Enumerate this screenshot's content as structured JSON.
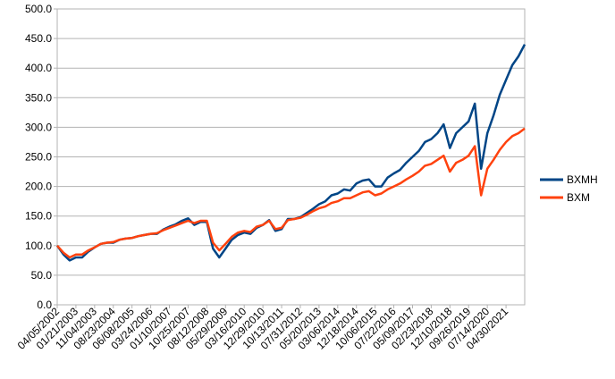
{
  "chart_data": {
    "type": "line",
    "categories": [
      "04/05/2002",
      null,
      null,
      "01/21/2003",
      null,
      null,
      "11/04/2003",
      null,
      null,
      "08/23/2004",
      null,
      null,
      "06/08/2005",
      null,
      null,
      "03/24/2006",
      null,
      null,
      "01/10/2007",
      null,
      null,
      "10/25/2007",
      null,
      null,
      "08/12/2008",
      null,
      null,
      "05/29/2009",
      null,
      null,
      "03/16/2010",
      null,
      null,
      "12/29/2010",
      null,
      null,
      "10/13/2011",
      null,
      null,
      "07/31/2012",
      null,
      null,
      "05/20/2013",
      null,
      null,
      "03/06/2014",
      null,
      null,
      "12/18/2014",
      null,
      null,
      "10/06/2015",
      null,
      null,
      "07/22/2016",
      null,
      null,
      "05/09/2017",
      null,
      null,
      "02/23/2018",
      null,
      null,
      "12/10/2018",
      null,
      null,
      "09/26/2019",
      null,
      null,
      "07/14/2020",
      null,
      null,
      "04/30/2021",
      null,
      null,
      null
    ],
    "series": [
      {
        "name": "BXMH",
        "color": "#004586",
        "values": [
          100,
          85,
          75,
          80,
          80,
          90,
          97,
          103,
          105,
          105,
          110,
          112,
          113,
          116,
          118,
          120,
          120,
          127,
          132,
          136,
          142,
          146,
          135,
          140,
          140,
          95,
          80,
          95,
          110,
          118,
          122,
          120,
          130,
          135,
          143,
          125,
          128,
          145,
          145,
          148,
          155,
          162,
          170,
          175,
          185,
          188,
          195,
          193,
          205,
          210,
          212,
          200,
          200,
          215,
          222,
          228,
          240,
          250,
          260,
          275,
          280,
          290,
          305,
          265,
          290,
          300,
          310,
          340,
          230,
          290,
          320,
          355,
          380,
          405,
          420,
          440
        ]
      },
      {
        "name": "BXM",
        "color": "#ff420e",
        "values": [
          100,
          88,
          80,
          85,
          85,
          92,
          97,
          103,
          105,
          106,
          110,
          112,
          113,
          116,
          118,
          120,
          121,
          126,
          130,
          134,
          138,
          142,
          138,
          142,
          142,
          105,
          92,
          103,
          115,
          122,
          125,
          123,
          132,
          135,
          142,
          128,
          130,
          143,
          145,
          147,
          152,
          158,
          163,
          166,
          172,
          175,
          180,
          180,
          185,
          190,
          192,
          185,
          188,
          195,
          200,
          205,
          212,
          218,
          225,
          235,
          238,
          245,
          252,
          225,
          240,
          245,
          252,
          268,
          185,
          230,
          245,
          262,
          275,
          285,
          290,
          298
        ]
      }
    ],
    "ylim": [
      0,
      500
    ],
    "yticks": [
      {
        "value": 0,
        "label": "0.0"
      },
      {
        "value": 50,
        "label": "50.0"
      },
      {
        "value": 100,
        "label": "100.0"
      },
      {
        "value": 150,
        "label": "150.0"
      },
      {
        "value": 200,
        "label": "200.0"
      },
      {
        "value": 250,
        "label": "250.0"
      },
      {
        "value": 300,
        "label": "300.0"
      },
      {
        "value": 350,
        "label": "350.0"
      },
      {
        "value": 400,
        "label": "400.0"
      },
      {
        "value": 450,
        "label": "450.0"
      },
      {
        "value": 500,
        "label": "500.0"
      }
    ],
    "grid": true,
    "legend": "right"
  }
}
